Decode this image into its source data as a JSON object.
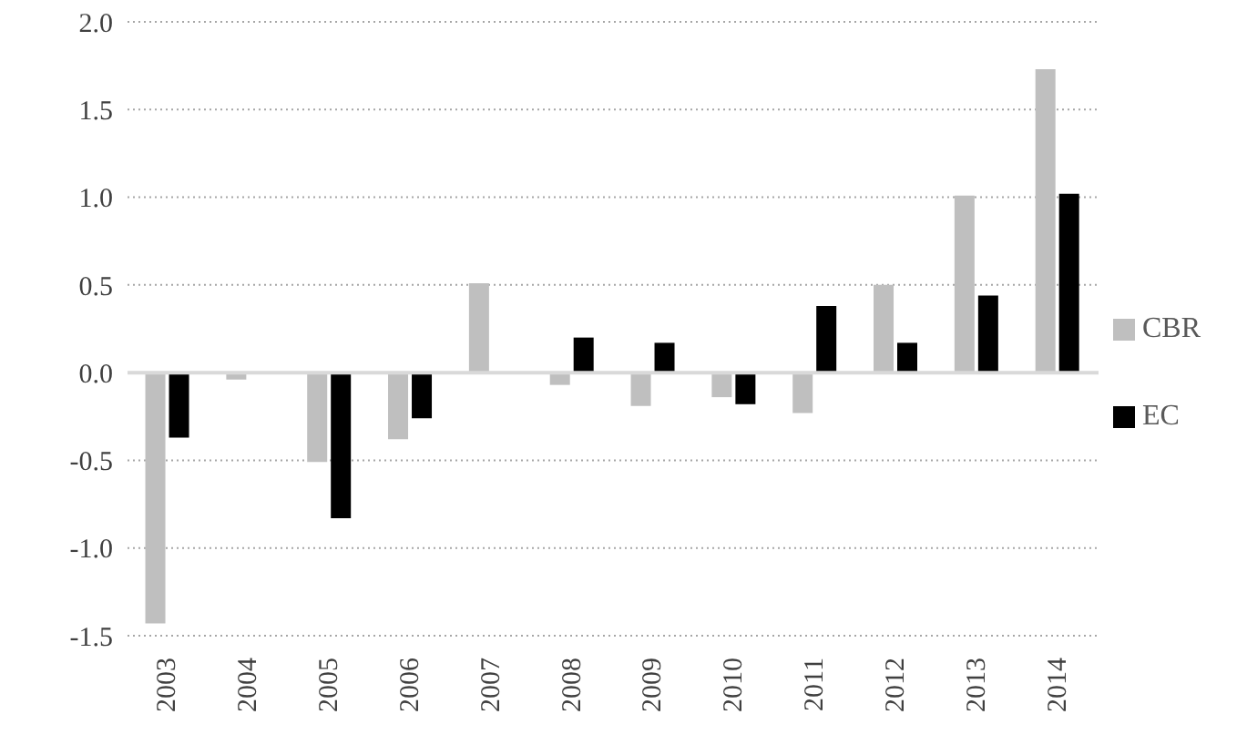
{
  "chart_data": {
    "type": "bar",
    "categories": [
      "2003",
      "2004",
      "2005",
      "2006",
      "2007",
      "2008",
      "2009",
      "2010",
      "2011",
      "2012",
      "2013",
      "2014"
    ],
    "series": [
      {
        "name": "CBR",
        "color": "#bfbfbf",
        "values": [
          -1.43,
          -0.04,
          -0.51,
          -0.38,
          0.51,
          -0.07,
          -0.19,
          -0.14,
          -0.23,
          0.5,
          1.01,
          1.73
        ]
      },
      {
        "name": "EC",
        "color": "#000000",
        "values": [
          -0.37,
          null,
          -0.83,
          -0.26,
          null,
          0.2,
          0.17,
          -0.18,
          0.38,
          0.17,
          0.44,
          1.02
        ]
      }
    ],
    "ylim": [
      -1.5,
      2.0
    ],
    "yticks": [
      {
        "value": -1.5,
        "label": "-1.5"
      },
      {
        "value": -1.0,
        "label": "-1.0"
      },
      {
        "value": -0.5,
        "label": "-0.5"
      },
      {
        "value": 0,
        "label": "0.0"
      },
      {
        "value": 0.5,
        "label": "0.5"
      },
      {
        "value": 1.0,
        "label": "1.0"
      },
      {
        "value": 1.5,
        "label": "1.5"
      },
      {
        "value": 2.0,
        "label": "2.0"
      }
    ],
    "grid": "y",
    "legend": "right"
  }
}
